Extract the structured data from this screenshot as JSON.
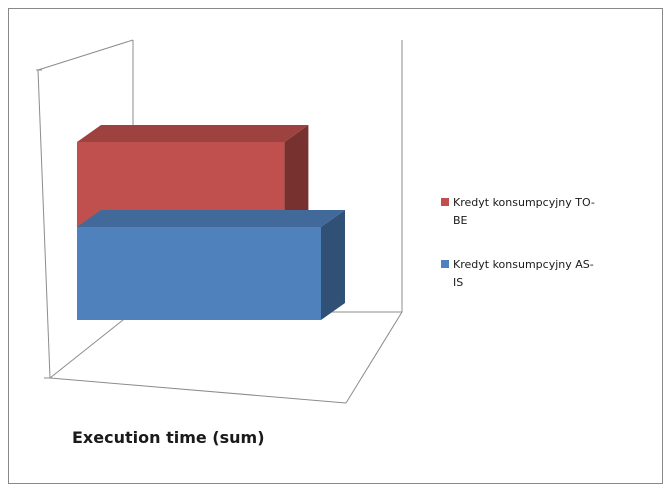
{
  "chart_data": {
    "type": "bar",
    "orientation": "horizontal",
    "style": "3d",
    "categories": [
      ""
    ],
    "series": [
      {
        "name": "Kredyt konsumpcyjny TO-BE",
        "name_lines": [
          "Kredyt konsumpcyjny TO-",
          "BE"
        ],
        "values": [
          0.85
        ],
        "color": "#c0504d"
      },
      {
        "name": "Kredyt konsumpcyjny AS-IS",
        "name_lines": [
          "Kredyt konsumpcyjny AS-",
          "IS"
        ],
        "values": [
          1.0
        ],
        "color": "#4f81bd"
      }
    ],
    "title": "",
    "xlabel": "Execution time (sum)",
    "ylabel": "",
    "xlim": [
      0,
      1
    ],
    "legend_position": "right",
    "grid": false
  }
}
